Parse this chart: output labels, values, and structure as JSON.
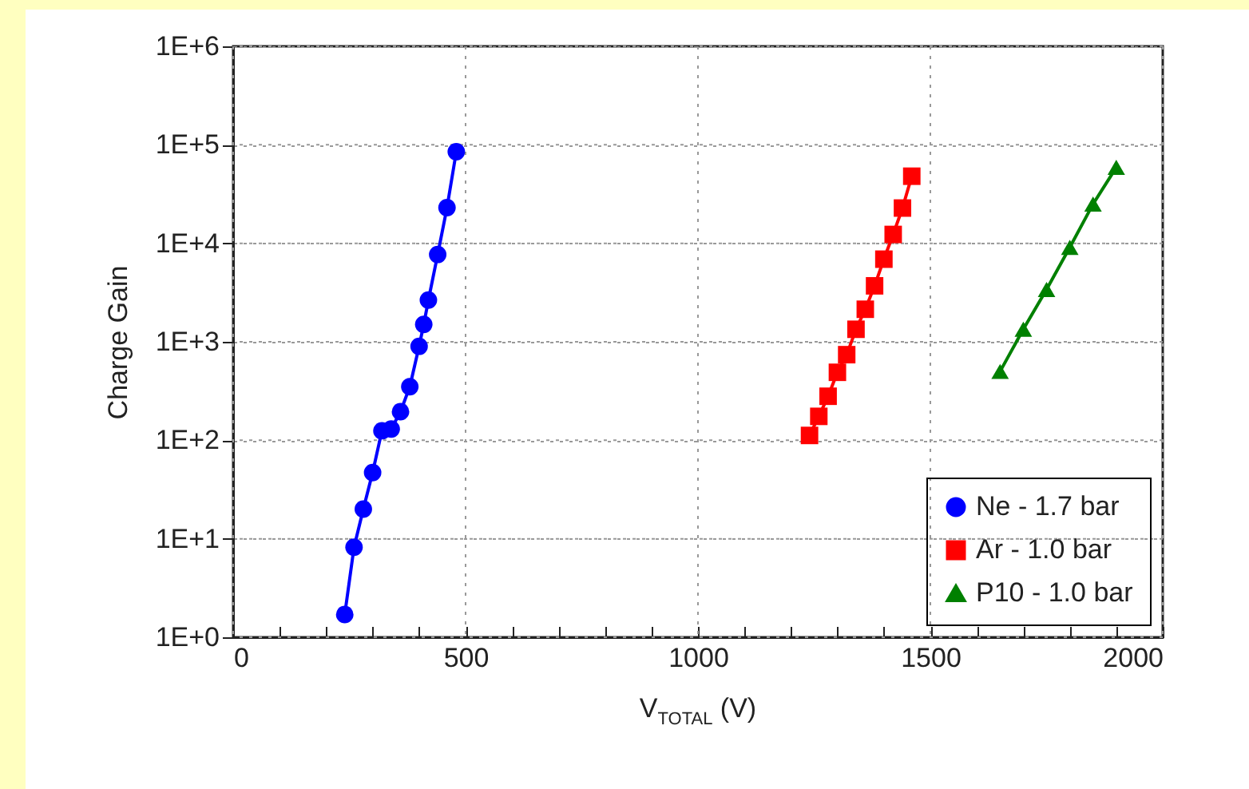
{
  "chart_data": {
    "type": "line",
    "xlabel": "V$_{TOTAL}$ (V)",
    "ylabel": "Charge Gain",
    "log": "y",
    "grid": true,
    "legend": "bottom right",
    "line_style": "solid",
    "xlim": [
      0,
      2000
    ],
    "xticks": [
      0,
      {
        "value": 100,
        "label": null
      },
      {
        "value": 200,
        "label": null
      },
      {
        "value": 300,
        "label": null
      },
      {
        "value": 400,
        "label": null
      },
      500,
      {
        "value": 600,
        "label": null
      },
      {
        "value": 700,
        "label": null
      },
      {
        "value": 800,
        "label": null
      },
      {
        "value": 900,
        "label": null
      },
      1000,
      {
        "value": 1100,
        "label": null
      },
      {
        "value": 1200,
        "label": null
      },
      {
        "value": 1300,
        "label": null
      },
      {
        "value": 1400,
        "label": null
      },
      1500,
      {
        "value": 1600,
        "label": null
      },
      {
        "value": 1700,
        "label": null
      },
      {
        "value": 1800,
        "label": null
      },
      {
        "value": 1900,
        "label": null
      },
      2000
    ],
    "ylim": [
      1,
      1000000
    ],
    "yticks": [
      {
        "value": 1,
        "label": "1E+0"
      },
      {
        "value": 10,
        "label": "1E+1"
      },
      {
        "value": 100,
        "label": "1E+2"
      },
      {
        "value": 1000,
        "label": "1E+3"
      },
      {
        "value": 10000,
        "label": "1E+4"
      },
      {
        "value": 100000,
        "label": "1E+5"
      },
      {
        "value": 1000000,
        "label": "1E+6"
      }
    ],
    "series": [
      {
        "name": "Ne - 1.7 bar",
        "color": "#0000ff",
        "marker": "circle",
        "x": [
          240,
          260,
          280,
          300,
          320,
          340,
          360,
          380,
          400,
          410,
          420,
          440,
          460,
          480
        ],
        "values": [
          1.7,
          8.2,
          20,
          47,
          125,
          130,
          195,
          350,
          900,
          1500,
          2650,
          7700,
          23000,
          85000
        ]
      },
      {
        "name": "Ar - 1.0 bar",
        "color": "#ff0000",
        "marker": "square",
        "x": [
          1240,
          1260,
          1280,
          1300,
          1320,
          1340,
          1360,
          1380,
          1400,
          1420,
          1440,
          1460
        ],
        "values": [
          112,
          175,
          280,
          490,
          740,
          1340,
          2140,
          3700,
          6900,
          12300,
          22800,
          48000
        ]
      },
      {
        "name": "P10 - 1.0 bar",
        "color": "#008000",
        "marker": "triangle",
        "x": [
          1650,
          1700,
          1750,
          1800,
          1850,
          1900
        ],
        "values": [
          500,
          1340,
          3400,
          9100,
          25000,
          59000
        ]
      }
    ]
  }
}
